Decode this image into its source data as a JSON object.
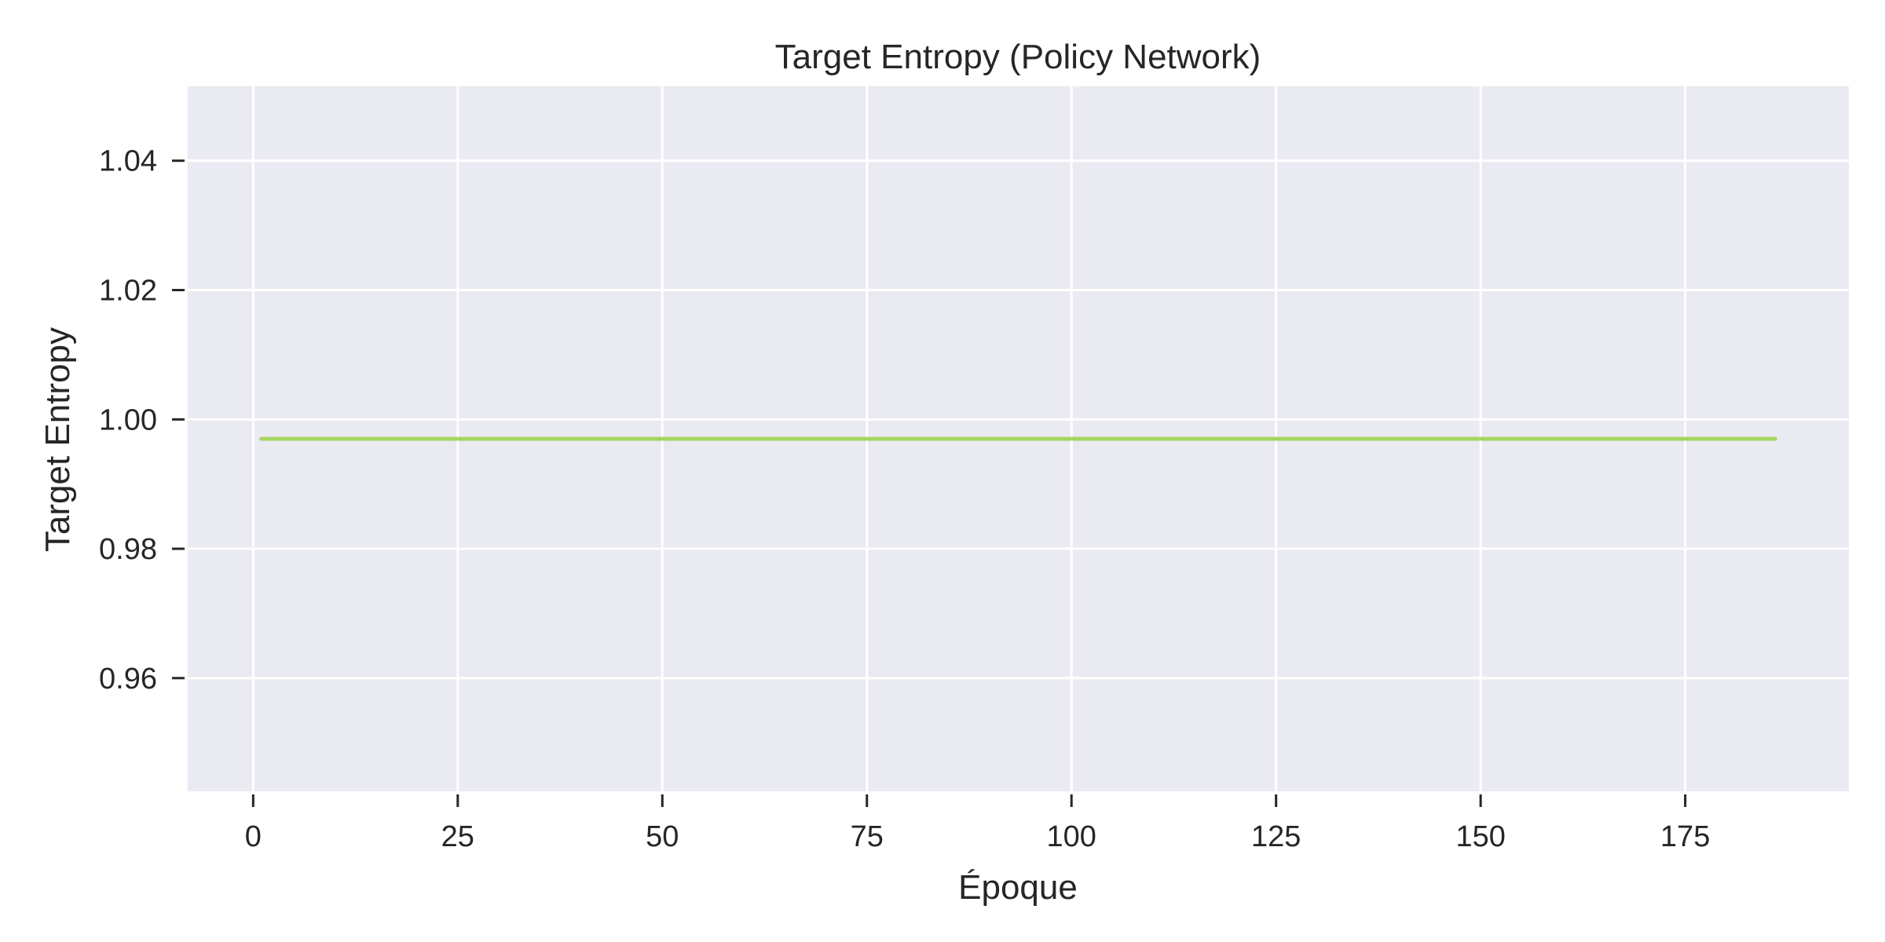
{
  "chart_data": {
    "type": "line",
    "title": "Target Entropy (Policy Network)",
    "xlabel": "Époque",
    "ylabel": "Target Entropy",
    "xlim": [
      -8,
      195
    ],
    "ylim": [
      0.9425,
      1.0515
    ],
    "x_ticks": [
      0,
      25,
      50,
      75,
      100,
      125,
      150,
      175
    ],
    "x_tick_labels": [
      "0",
      "25",
      "50",
      "75",
      "100",
      "125",
      "150",
      "175"
    ],
    "y_ticks": [
      0.96,
      0.98,
      1.0,
      1.02,
      1.04
    ],
    "y_tick_labels": [
      "0.96",
      "0.98",
      "1.00",
      "1.02",
      "1.04"
    ],
    "grid": true,
    "legend": false,
    "background_color": "#eaeaf2",
    "grid_color": "#ffffff",
    "series": [
      {
        "color": "#a6d65e",
        "x": [
          1,
          186
        ],
        "y": [
          0.997,
          0.997
        ]
      }
    ]
  }
}
